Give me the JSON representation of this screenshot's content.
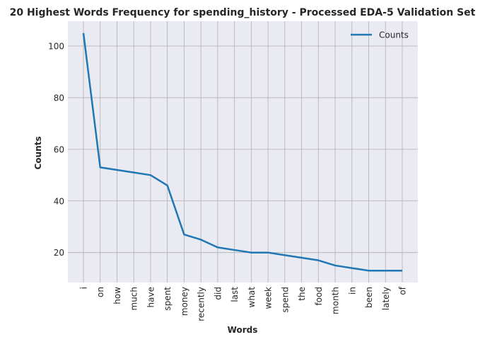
{
  "chart_data": {
    "type": "line",
    "title": "20 Highest Words Frequency for spending_history - Processed EDA-5 Validation Set",
    "xlabel": "Words",
    "ylabel": "Counts",
    "categories": [
      "i",
      "on",
      "how",
      "much",
      "have",
      "spent",
      "money",
      "recently",
      "did",
      "last",
      "what",
      "week",
      "spend",
      "the",
      "food",
      "month",
      "in",
      "been",
      "lately",
      "of"
    ],
    "series": [
      {
        "name": "Counts",
        "color": "#1f77b4",
        "values": [
          105,
          53,
          52,
          51,
          50,
          46,
          27,
          25,
          22,
          21,
          20,
          20,
          19,
          18,
          17,
          15,
          14,
          13,
          13,
          13
        ]
      }
    ],
    "yticks": [
      20,
      40,
      60,
      80,
      100
    ],
    "ylim": [
      8.4,
      109.6
    ],
    "grid": true,
    "legend": "top-right",
    "background": "#eaeaf2",
    "grid_color": "#b0b0b0"
  }
}
